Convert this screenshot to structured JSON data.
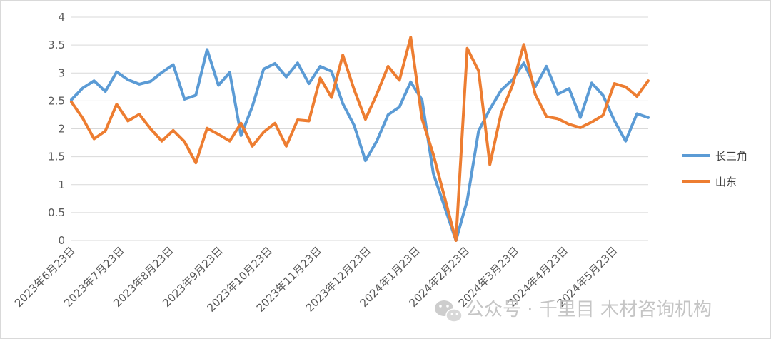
{
  "chart_data": {
    "type": "line",
    "title": "",
    "xlabel": "",
    "ylabel": "",
    "ylim": [
      0,
      4
    ],
    "yticks": [
      "0",
      "0.5",
      "1",
      "1.5",
      "2",
      "2.5",
      "3",
      "3.5",
      "4"
    ],
    "grid": "horizontal",
    "legend_position": "right",
    "x_tick_labels": [
      "2023年6月23日",
      "2023年7月23日",
      "2023年8月23日",
      "2023年9月23日",
      "2023年10月23日",
      "2023年11月23日",
      "2023年12月23日",
      "2024年1月23日",
      "2024年2月23日",
      "2024年3月23日",
      "2024年4月23日",
      "2024年5月23日"
    ],
    "series": [
      {
        "name": "长三角",
        "color": "#5B9BD5",
        "values": [
          2.52,
          2.73,
          2.86,
          2.67,
          3.02,
          2.88,
          2.8,
          2.85,
          3.01,
          3.15,
          2.53,
          2.6,
          3.42,
          2.78,
          3.01,
          1.88,
          2.4,
          3.07,
          3.17,
          2.93,
          3.18,
          2.81,
          3.12,
          3.03,
          2.45,
          2.06,
          1.43,
          1.78,
          2.25,
          2.39,
          2.84,
          2.52,
          1.2,
          null,
          0.0,
          0.72,
          1.96,
          2.35,
          2.69,
          2.88,
          3.18,
          2.75,
          3.12,
          2.62,
          2.72,
          2.2,
          2.82,
          2.6,
          2.15,
          1.78,
          2.27,
          2.2
        ]
      },
      {
        "name": "山东",
        "color": "#ED7D31",
        "values": [
          2.48,
          2.19,
          1.82,
          1.96,
          2.44,
          2.14,
          2.26,
          2.0,
          1.78,
          1.97,
          1.77,
          1.39,
          2.01,
          1.9,
          1.78,
          2.1,
          1.69,
          1.94,
          2.1,
          1.69,
          2.16,
          2.14,
          2.91,
          2.56,
          3.32,
          2.7,
          2.17,
          2.62,
          3.12,
          2.87,
          3.64,
          2.18,
          1.54,
          null,
          0.0,
          3.44,
          3.04,
          1.36,
          2.28,
          2.78,
          3.51,
          2.62,
          2.22,
          2.18,
          2.08,
          2.02,
          2.12,
          2.24,
          2.81,
          2.75,
          2.58,
          2.86
        ]
      }
    ]
  },
  "watermark": {
    "text": "公众号 · 千里目 木材咨询机构",
    "icon": "wechat-icon"
  }
}
